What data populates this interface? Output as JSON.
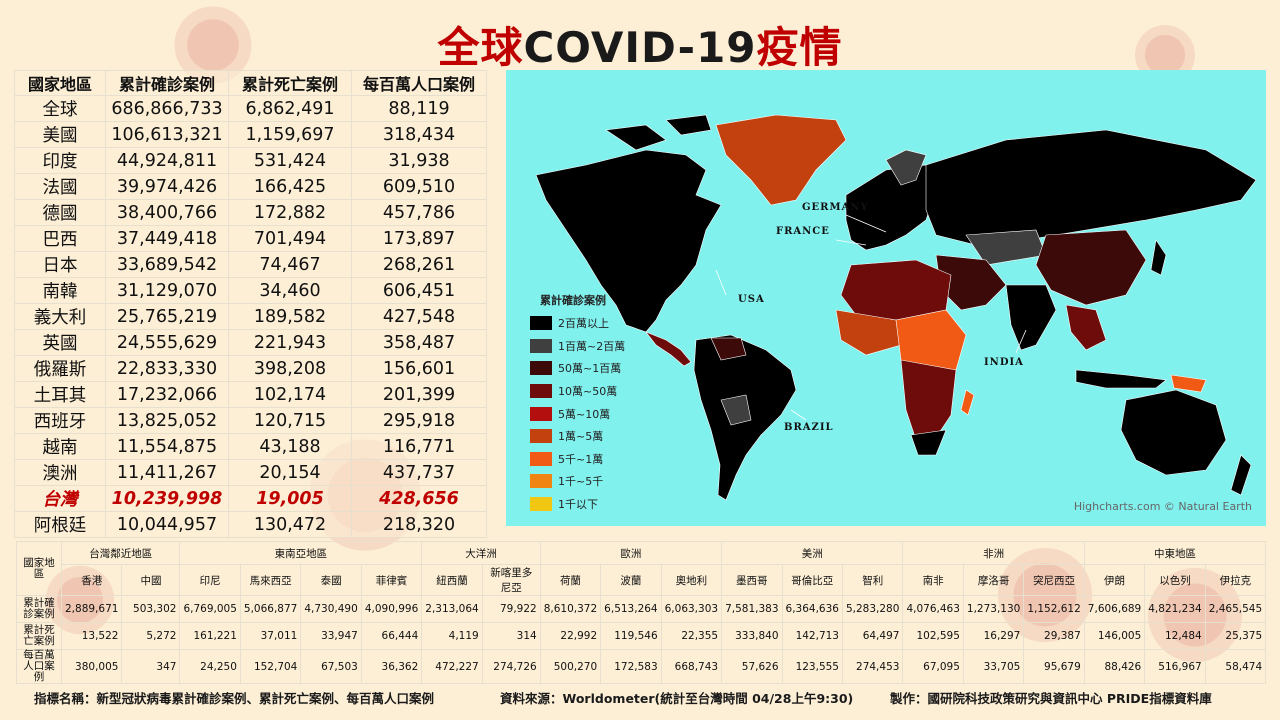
{
  "title": {
    "part1": "全球",
    "part2": "COVID-19",
    "part3": "疫情"
  },
  "left_table": {
    "headers": [
      "國家地區",
      "累計確診案例",
      "累計死亡案例",
      "每百萬人口案例"
    ],
    "rows": [
      [
        "全球",
        "686,866,733",
        "6,862,491",
        "88,119"
      ],
      [
        "美國",
        "106,613,321",
        "1,159,697",
        "318,434"
      ],
      [
        "印度",
        "44,924,811",
        "531,424",
        "31,938"
      ],
      [
        "法國",
        "39,974,426",
        "166,425",
        "609,510"
      ],
      [
        "德國",
        "38,400,766",
        "172,882",
        "457,786"
      ],
      [
        "巴西",
        "37,449,418",
        "701,494",
        "173,897"
      ],
      [
        "日本",
        "33,689,542",
        "74,467",
        "268,261"
      ],
      [
        "南韓",
        "31,129,070",
        "34,460",
        "606,451"
      ],
      [
        "義大利",
        "25,765,219",
        "189,582",
        "427,548"
      ],
      [
        "英國",
        "24,555,629",
        "221,943",
        "358,487"
      ],
      [
        "俄羅斯",
        "22,833,330",
        "398,208",
        "156,601"
      ],
      [
        "土耳其",
        "17,232,066",
        "102,174",
        "201,399"
      ],
      [
        "西班牙",
        "13,825,052",
        "120,715",
        "295,918"
      ],
      [
        "越南",
        "11,554,875",
        "43,188",
        "116,771"
      ],
      [
        "澳洲",
        "11,411,267",
        "20,154",
        "437,737"
      ],
      [
        "台灣",
        "10,239,998",
        "19,005",
        "428,656"
      ],
      [
        "阿根廷",
        "10,044,957",
        "130,472",
        "218,320"
      ]
    ],
    "highlight_row": 15,
    "highlight_color": "#c00000"
  },
  "map": {
    "background": "#81f1ee",
    "labels": {
      "germany": "GERMANY",
      "france": "FRANCE",
      "usa": "USA",
      "india": "INDIA",
      "brazil": "BRAZIL"
    },
    "legend_title": "累計確診案例",
    "legend": [
      {
        "label": "2百萬以上",
        "color": "#000000"
      },
      {
        "label": "1百萬~2百萬",
        "color": "#3f3f3f"
      },
      {
        "label": "50萬~1百萬",
        "color": "#3d0a0a"
      },
      {
        "label": "10萬~50萬",
        "color": "#6e0c0c"
      },
      {
        "label": "5萬~10萬",
        "color": "#b40f0f"
      },
      {
        "label": "1萬~5萬",
        "color": "#c2410f"
      },
      {
        "label": "5千~1萬",
        "color": "#f05a14"
      },
      {
        "label": "1千~5千",
        "color": "#f08514"
      },
      {
        "label": "1千以下",
        "color": "#f0c814"
      }
    ],
    "credit": "Highcharts.com © Natural Earth"
  },
  "bottom_table": {
    "region_header": "國家地區",
    "regions": [
      {
        "name": "台灣鄰近地區",
        "span": 2
      },
      {
        "name": "東南亞地區",
        "span": 4
      },
      {
        "name": "大洋洲",
        "span": 2
      },
      {
        "name": "歐洲",
        "span": 3
      },
      {
        "name": "美洲",
        "span": 3
      },
      {
        "name": "非洲",
        "span": 3
      },
      {
        "name": "中東地區",
        "span": 3
      }
    ],
    "countries": [
      "香港",
      "中國",
      "印尼",
      "馬來西亞",
      "泰國",
      "菲律賓",
      "紐西蘭",
      "新喀里多尼亞",
      "荷蘭",
      "波蘭",
      "奧地利",
      "墨西哥",
      "哥倫比亞",
      "智利",
      "南非",
      "摩洛哥",
      "突尼西亞",
      "伊朗",
      "以色列",
      "伊拉克"
    ],
    "row_labels": [
      "累計確診案例",
      "累計死亡案例",
      "每百萬人口案例"
    ],
    "rows": [
      [
        "2,889,671",
        "503,302",
        "6,769,005",
        "5,066,877",
        "4,730,490",
        "4,090,996",
        "2,313,064",
        "79,922",
        "8,610,372",
        "6,513,264",
        "6,063,303",
        "7,581,383",
        "6,364,636",
        "5,283,280",
        "4,076,463",
        "1,273,130",
        "1,152,612",
        "7,606,689",
        "4,821,234",
        "2,465,545"
      ],
      [
        "13,522",
        "5,272",
        "161,221",
        "37,011",
        "33,947",
        "66,444",
        "4,119",
        "314",
        "22,992",
        "119,546",
        "22,355",
        "333,840",
        "142,713",
        "64,497",
        "102,595",
        "16,297",
        "29,387",
        "146,005",
        "12,484",
        "25,375"
      ],
      [
        "380,005",
        "347",
        "24,250",
        "152,704",
        "67,503",
        "36,362",
        "472,227",
        "274,726",
        "500,270",
        "172,583",
        "668,743",
        "57,626",
        "123,555",
        "274,453",
        "67,095",
        "33,705",
        "95,679",
        "88,426",
        "516,967",
        "58,474"
      ]
    ]
  },
  "footer": {
    "indicator": "指標名稱：新型冠狀病毒累計確診案例、累計死亡案例、每百萬人口案例",
    "source": "資料來源：Worldometer(統計至台灣時間 04/28上午9:30)",
    "producer": "製作：國研院科技政策研究與資訊中心 PRIDE指標資料庫"
  }
}
